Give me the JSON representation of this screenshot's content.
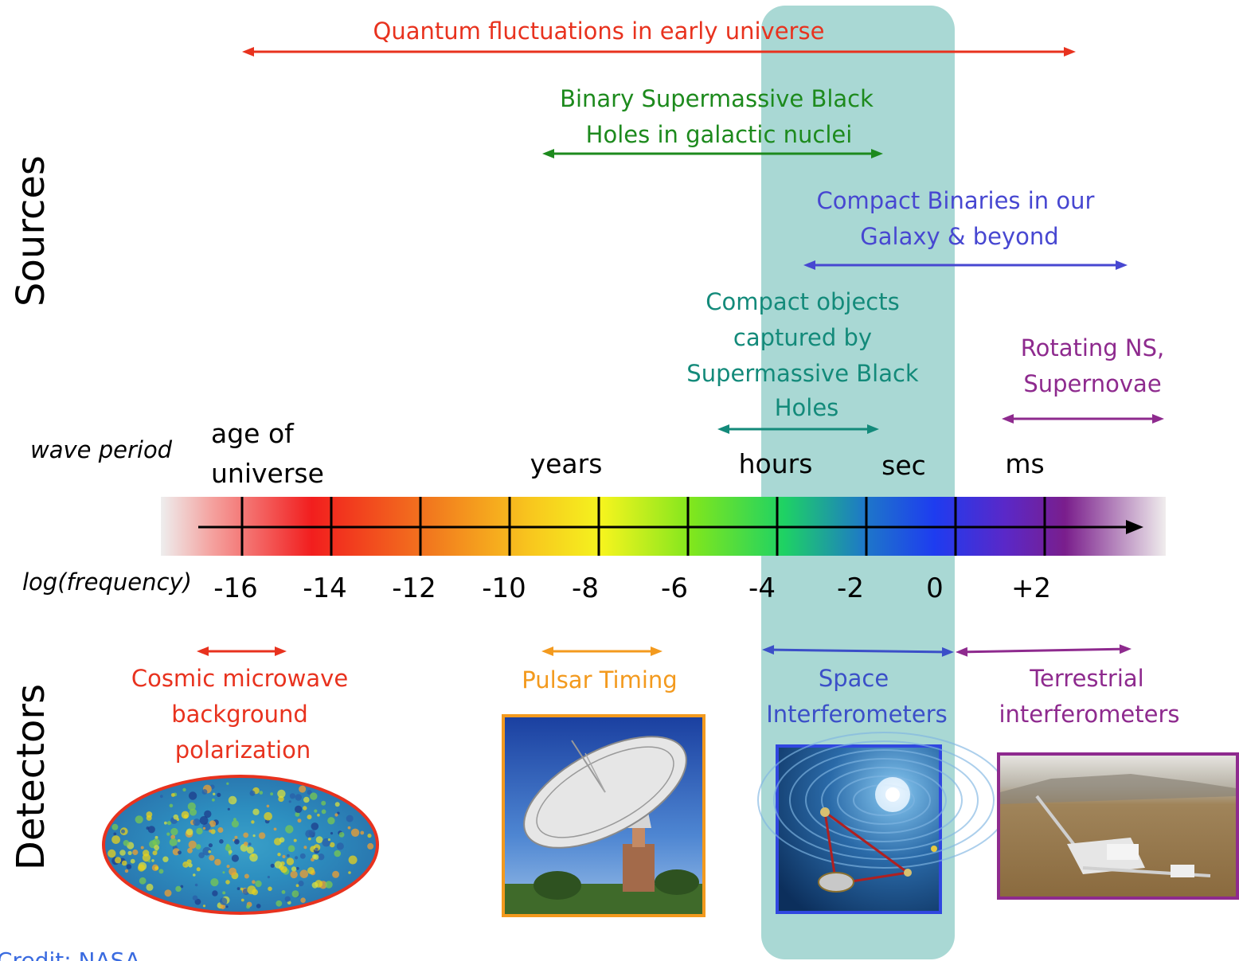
{
  "side_labels": {
    "sources": "Sources",
    "detectors": "Detectors"
  },
  "axis": {
    "wave_period_label": "wave period",
    "period_labels": {
      "age_of": "age of",
      "universe": "universe",
      "years": "years",
      "hours": "hours",
      "sec": "sec",
      "ms": "ms"
    },
    "frequency_label": "log(frequency)",
    "ticks": [
      "-16",
      "-14",
      "-12",
      "-10",
      "-8",
      "-6",
      "-4",
      "-2",
      "0",
      "+2"
    ]
  },
  "sources": {
    "quantum": {
      "label": "Quantum fluctuations in early universe",
      "color": "#e8321e"
    },
    "smbh": {
      "line1": "Binary Supermassive Black",
      "line2": "Holes in galactic nuclei",
      "color": "#1d8a1d"
    },
    "compact_binaries": {
      "line1": "Compact Binaries in our",
      "line2": "Galaxy & beyond",
      "color": "#4747d1"
    },
    "captured": {
      "line1": "Compact objects",
      "line2": "captured by",
      "line3": "Supermassive Black",
      "line4": "Holes",
      "color": "#138a7a"
    },
    "rotating": {
      "line1": "Rotating NS,",
      "line2": "Supernovae",
      "color": "#8e2a8e"
    }
  },
  "detectors": {
    "cmb": {
      "line1": "Cosmic microwave",
      "line2": "background",
      "line3": "polarization",
      "color": "#e8321e"
    },
    "pulsar": {
      "label": "Pulsar Timing",
      "color": "#f39a1e"
    },
    "space": {
      "line1": "Space",
      "line2": "Interferometers",
      "color": "#3b4fc8"
    },
    "terrestrial": {
      "line1": "Terrestrial",
      "line2": "interferometers",
      "color": "#8e2a8e"
    }
  },
  "credit": "Credit: NASA",
  "colors": {
    "highlight": "#a9d8d4",
    "axis": "#000000"
  }
}
